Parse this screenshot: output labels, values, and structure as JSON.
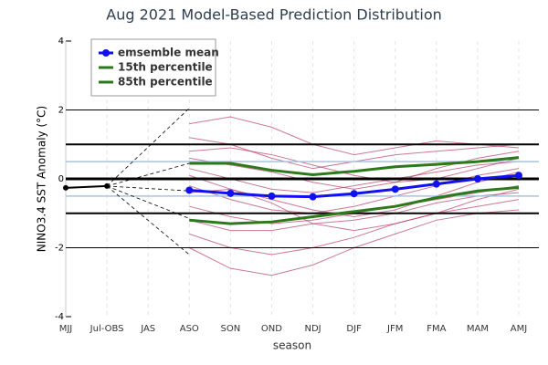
{
  "chart_data": {
    "type": "line",
    "title": "Aug 2021 Model-Based Prediction Distribution",
    "x_label": "season",
    "y_label": "NINO3.4 SST Anomaly (°C)",
    "categories": [
      "MJJ",
      "Jul-OBS",
      "JAS",
      "ASO",
      "SON",
      "OND",
      "NDJ",
      "DJF",
      "JFM",
      "FMA",
      "MAM",
      "AMJ"
    ],
    "ylim": [
      -4,
      4
    ],
    "yticks": [
      -4,
      -2,
      0,
      2,
      4
    ],
    "reference_lines": [
      {
        "value": 2,
        "color": "#000",
        "width": 1
      },
      {
        "value": -2,
        "color": "#000",
        "width": 1
      },
      {
        "value": 1,
        "color": "#000",
        "width": 2
      },
      {
        "value": -1,
        "color": "#000",
        "width": 2
      },
      {
        "value": 0.5,
        "color": "#a8c4dc",
        "width": 1.5
      },
      {
        "value": -0.5,
        "color": "#a8c4dc",
        "width": 1.5
      },
      {
        "value": 0,
        "color": "#000",
        "width": 3
      }
    ],
    "plume_start": [
      2.05,
      0.45,
      -0.35,
      -1.15,
      -2.2
    ],
    "member_color": "#b03060",
    "members": [
      [
        null,
        null,
        null,
        1.2,
        1.0,
        0.6,
        0.3,
        0.5,
        0.7,
        0.8,
        0.9,
        1.0
      ],
      [
        null,
        null,
        null,
        0.3,
        0.0,
        -0.3,
        -0.4,
        -0.2,
        0.0,
        0.2,
        0.4,
        0.5
      ],
      [
        null,
        null,
        null,
        -0.8,
        -1.1,
        -1.3,
        -1.2,
        -1.0,
        -0.8,
        -0.6,
        -0.4,
        -0.2
      ],
      [
        null,
        null,
        null,
        -1.6,
        -2.0,
        -2.2,
        -2.0,
        -1.7,
        -1.3,
        -1.0,
        -0.8,
        -0.6
      ],
      [
        null,
        null,
        null,
        0.8,
        0.9,
        0.7,
        0.4,
        0.1,
        -0.1,
        0.0,
        0.3,
        0.6
      ],
      [
        null,
        null,
        null,
        -0.2,
        -0.6,
        -0.9,
        -1.0,
        -0.8,
        -0.5,
        -0.2,
        0.1,
        0.3
      ],
      [
        null,
        null,
        null,
        -2.0,
        -2.6,
        -2.8,
        -2.5,
        -2.0,
        -1.6,
        -1.2,
        -1.0,
        -0.9
      ],
      [
        null,
        null,
        null,
        1.6,
        1.8,
        1.5,
        1.0,
        0.7,
        0.9,
        1.1,
        1.0,
        0.9
      ],
      [
        null,
        null,
        null,
        -0.4,
        -0.3,
        -0.6,
        -0.9,
        -1.1,
        -0.9,
        -0.5,
        -0.1,
        0.2
      ],
      [
        null,
        null,
        null,
        0.1,
        -0.3,
        -0.7,
        -1.3,
        -1.5,
        -1.3,
        -1.0,
        -0.6,
        -0.3
      ],
      [
        null,
        null,
        null,
        -1.2,
        -1.5,
        -1.5,
        -1.3,
        -1.2,
        -1.0,
        -0.7,
        -0.5,
        -0.4
      ],
      [
        null,
        null,
        null,
        0.6,
        0.4,
        0.2,
        -0.1,
        -0.3,
        -0.1,
        0.3,
        0.6,
        0.8
      ]
    ],
    "observed": {
      "color": "#000",
      "values": [
        -0.26,
        -0.21,
        null,
        null,
        null,
        null,
        null,
        null,
        null,
        null,
        null,
        null
      ]
    },
    "series": [
      {
        "name": "emsemble mean",
        "color": "#1010f0",
        "markers": true,
        "values": [
          null,
          null,
          null,
          -0.33,
          -0.42,
          -0.5,
          -0.52,
          -0.43,
          -0.3,
          -0.15,
          0.0,
          0.1
        ]
      },
      {
        "name": "15th percentile",
        "color": "#2a7a1a",
        "markers": false,
        "values": [
          null,
          null,
          null,
          -1.2,
          -1.3,
          -1.25,
          -1.1,
          -0.95,
          -0.8,
          -0.55,
          -0.35,
          -0.25
        ]
      },
      {
        "name": "85th percentile",
        "color": "#2a7a1a",
        "markers": false,
        "values": [
          null,
          null,
          null,
          0.45,
          0.45,
          0.25,
          0.12,
          0.22,
          0.35,
          0.42,
          0.5,
          0.62
        ]
      }
    ],
    "grid": true
  }
}
